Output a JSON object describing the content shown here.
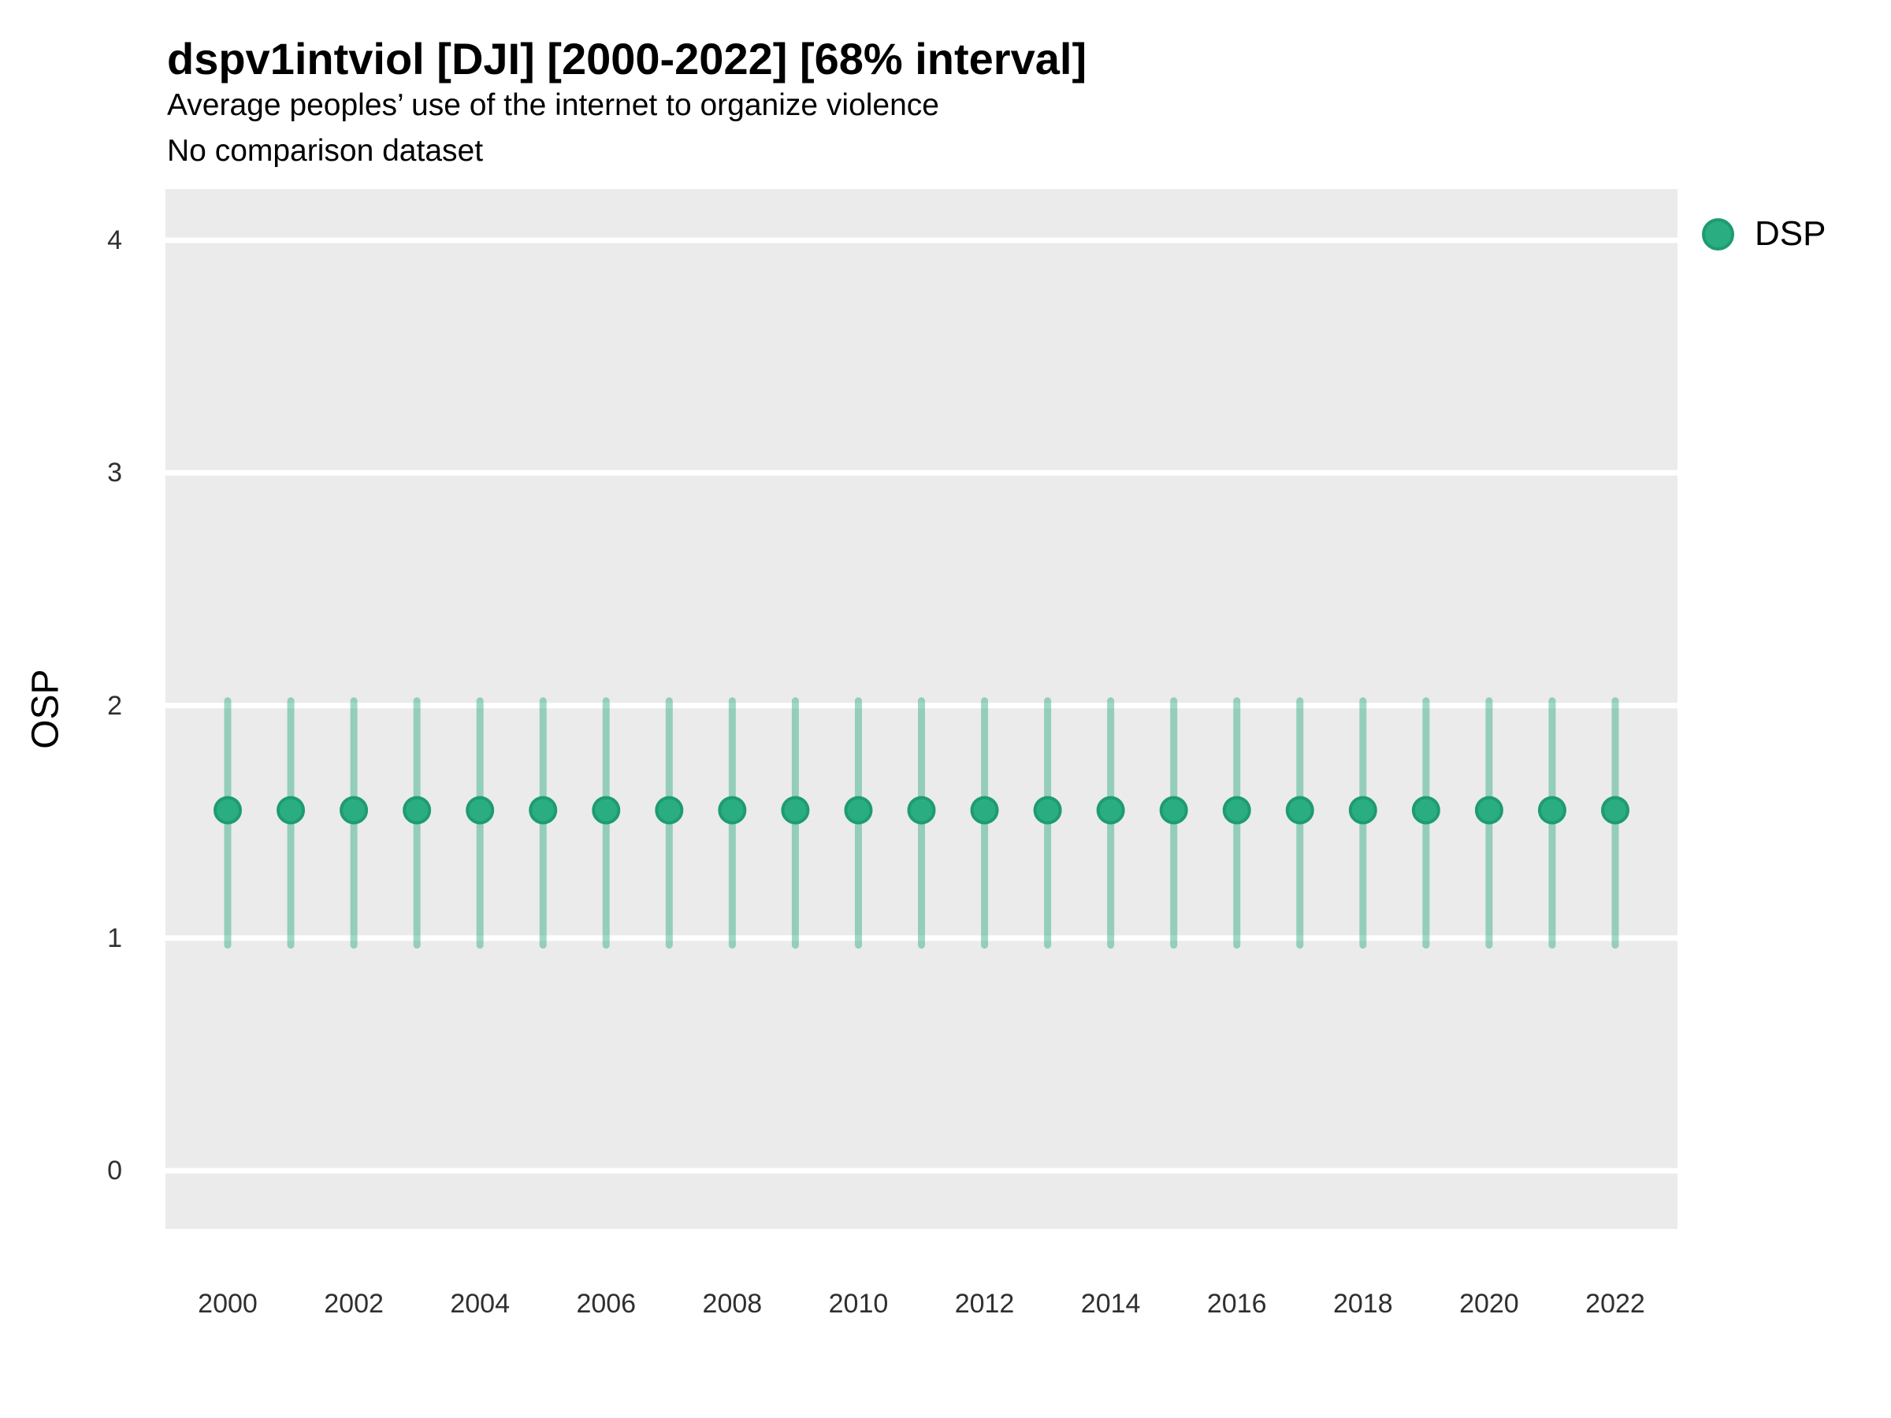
{
  "header": {
    "title": "dspv1intviol [DJI] [2000-2022] [68% interval]",
    "subtitle": "Average peoples’ use of the internet to organize violence",
    "note": "No comparison dataset"
  },
  "legend": {
    "position": "right-top",
    "items": [
      {
        "label": "DSP",
        "color": "#2BAD82"
      }
    ]
  },
  "axes": {
    "y_label": "OSP",
    "y_ticks": [
      4,
      3,
      2,
      1,
      0
    ],
    "x_tick_labels": [
      2000,
      2002,
      2004,
      2006,
      2008,
      2010,
      2012,
      2014,
      2016,
      2018,
      2020,
      2022
    ]
  },
  "colors": {
    "point_fill": "#2BAD82",
    "point_stroke": "#1E9C6F",
    "interval_bar": "rgba(43, 171, 128, 0.45)",
    "panel_background": "#EBEBEB",
    "gridline": "#FFFFFF",
    "page_background": "#FFFFFF",
    "title_text": "#000000",
    "tick_text": "#2F2F2F"
  },
  "chart_data": {
    "type": "scatter",
    "title": "dspv1intviol [DJI] [2000-2022] [68% interval]",
    "subtitle": "Average peoples’ use of the internet to organize violence",
    "note": "No comparison dataset",
    "xlabel": "",
    "ylabel": "OSP",
    "interval_level": "68%",
    "x": [
      2000,
      2001,
      2002,
      2003,
      2004,
      2005,
      2006,
      2007,
      2008,
      2009,
      2010,
      2011,
      2012,
      2013,
      2014,
      2015,
      2016,
      2017,
      2018,
      2019,
      2020,
      2021,
      2022
    ],
    "series": [
      {
        "name": "DSP",
        "values": [
          1.55,
          1.55,
          1.55,
          1.55,
          1.55,
          1.55,
          1.55,
          1.55,
          1.55,
          1.55,
          1.55,
          1.55,
          1.55,
          1.55,
          1.55,
          1.55,
          1.55,
          1.55,
          1.55,
          1.55,
          1.55,
          1.55,
          1.55
        ],
        "lower": [
          0.97,
          0.97,
          0.97,
          0.97,
          0.97,
          0.97,
          0.97,
          0.97,
          0.97,
          0.97,
          0.97,
          0.97,
          0.97,
          0.97,
          0.97,
          0.97,
          0.97,
          0.97,
          0.97,
          0.97,
          0.97,
          0.97,
          0.97
        ],
        "upper": [
          2.02,
          2.02,
          2.02,
          2.02,
          2.02,
          2.02,
          2.02,
          2.02,
          2.02,
          2.02,
          2.02,
          2.02,
          2.02,
          2.02,
          2.02,
          2.02,
          2.02,
          2.02,
          2.02,
          2.02,
          2.02,
          2.02,
          2.02
        ]
      }
    ],
    "ylim": [
      -0.25,
      4.22
    ],
    "xlim": [
      1999,
      2023
    ],
    "y_ticks": [
      0,
      1,
      2,
      3,
      4
    ],
    "x_ticks": [
      2000,
      2002,
      2004,
      2006,
      2008,
      2010,
      2012,
      2014,
      2016,
      2018,
      2020,
      2022
    ],
    "grid": "horizontal-major-only",
    "legend_position": "right-top"
  }
}
